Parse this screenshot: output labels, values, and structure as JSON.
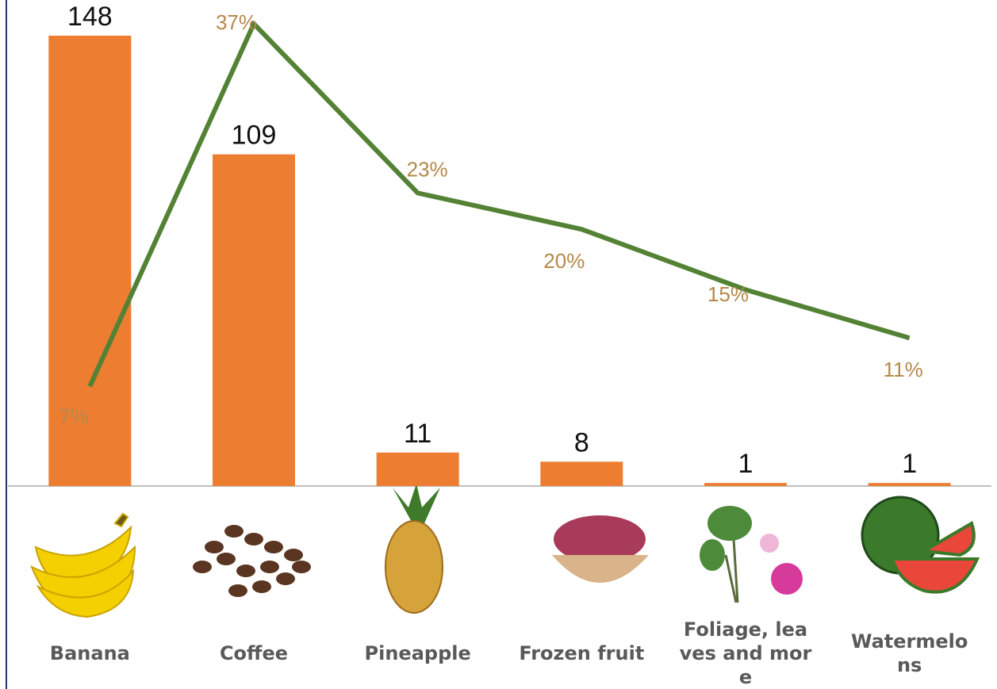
{
  "chart_data": {
    "type": "bar",
    "categories": [
      "Banana",
      "Coffee",
      "Pineapple",
      "Frozen fruit",
      "Foliage, leaves and more",
      "Watermelons"
    ],
    "series": [
      {
        "type": "bar",
        "color": "#ed7d31",
        "values": [
          148,
          109,
          11,
          8,
          1,
          1
        ]
      },
      {
        "type": "line",
        "color": "#548235",
        "values": [
          7,
          37,
          23,
          20,
          15,
          11
        ],
        "value_labels": [
          "7%",
          "37%",
          "23%",
          "20%",
          "15%",
          "11%"
        ]
      }
    ]
  }
}
